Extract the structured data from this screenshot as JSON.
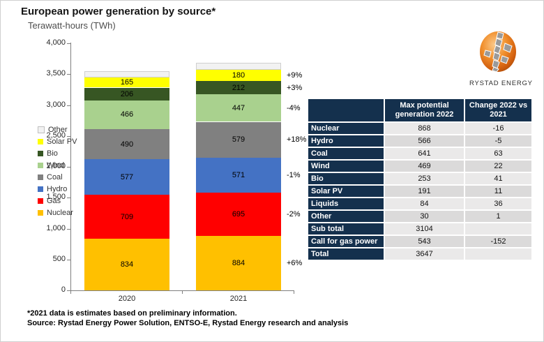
{
  "header": {
    "title": "European power generation by source*",
    "subtitle": "Terawatt-hours (TWh)"
  },
  "chart_data": {
    "type": "bar",
    "subtype": "stacked-vertical",
    "title": "European power generation by source*",
    "ylabel": "Terawatt-hours (TWh)",
    "categories": [
      "2020",
      "2021"
    ],
    "ylim": [
      0,
      4000
    ],
    "y_ticks": [
      0,
      500,
      1000,
      1500,
      2000,
      2500,
      3000,
      3500,
      4000
    ],
    "y_tick_labels": [
      "0",
      "500",
      "1,000",
      "1,500",
      "2,000",
      "2,500",
      "3,000",
      "3,500",
      "4,000"
    ],
    "grid": false,
    "legend_position": "left",
    "series_bottom_to_top": [
      {
        "name": "Nuclear",
        "color": "#FFC000",
        "values": [
          834,
          884
        ],
        "change": "+6%",
        "show_value": true
      },
      {
        "name": "Gas",
        "color": "#FF0000",
        "values": [
          709,
          695
        ],
        "change": "-2%",
        "show_value": true
      },
      {
        "name": "Hydro",
        "color": "#4472C4",
        "values": [
          577,
          571
        ],
        "change": "-1%",
        "show_value": true
      },
      {
        "name": "Coal",
        "color": "#808080",
        "values": [
          490,
          579
        ],
        "change": "+18%",
        "show_value": true
      },
      {
        "name": "Wind",
        "color": "#A9D18E",
        "values": [
          466,
          447
        ],
        "change": "-4%",
        "show_value": true
      },
      {
        "name": "Bio",
        "color": "#375623",
        "values": [
          206,
          212
        ],
        "change": "+3%",
        "show_value": true
      },
      {
        "name": "Solar PV",
        "color": "#FFFF00",
        "values": [
          165,
          180
        ],
        "change": "+9%",
        "show_value": true
      },
      {
        "name": "Other",
        "color": "#F2F2F2",
        "values": [
          100,
          115
        ],
        "change": null,
        "show_value": false
      }
    ]
  },
  "table": {
    "headers": [
      "",
      "Max potential generation 2022",
      "Change 2022 vs 2021"
    ],
    "rows": [
      {
        "label": "Nuclear",
        "max_2022": "868",
        "change": "-16"
      },
      {
        "label": "Hydro",
        "max_2022": "566",
        "change": "-5"
      },
      {
        "label": "Coal",
        "max_2022": "641",
        "change": "63"
      },
      {
        "label": "Wind",
        "max_2022": "469",
        "change": "22"
      },
      {
        "label": "Bio",
        "max_2022": "253",
        "change": "41"
      },
      {
        "label": "Solar PV",
        "max_2022": "191",
        "change": "11"
      },
      {
        "label": "Liquids",
        "max_2022": "84",
        "change": "36"
      },
      {
        "label": "Other",
        "max_2022": "30",
        "change": "1"
      },
      {
        "label": "Sub total",
        "max_2022": "3104",
        "change": ""
      },
      {
        "label": "Call for gas power",
        "max_2022": "543",
        "change": "-152"
      },
      {
        "label": "Total",
        "max_2022": "3647",
        "change": ""
      }
    ]
  },
  "logo": {
    "brand": "RYSTAD ENERGY"
  },
  "footnotes": [
    "*2021 data is estimates based on preliminary information.",
    "Source: Rystad Energy Power Solution,  ENTSO-E, Rystad Energy research and analysis"
  ]
}
